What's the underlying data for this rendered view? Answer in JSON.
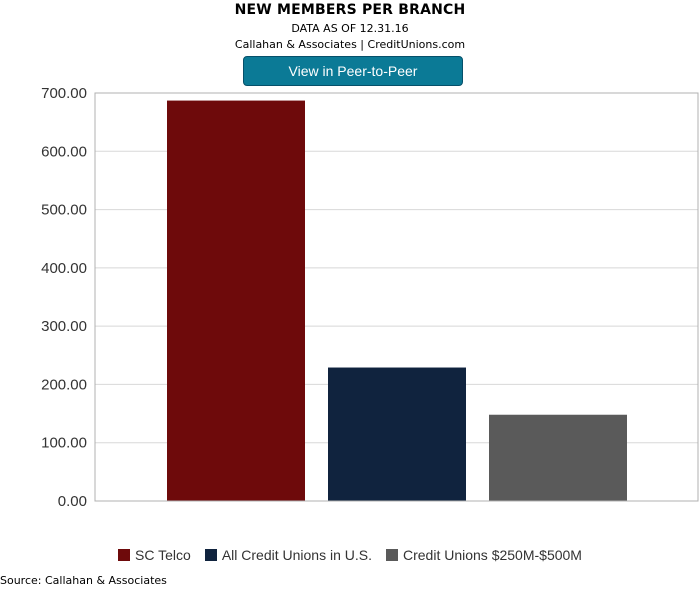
{
  "header": {
    "title": "NEW MEMBERS PER BRANCH",
    "subtitle1": "DATA AS OF 12.31.16",
    "subtitle2": "Callahan & Associates | CreditUnions.com",
    "button_label": "View in Peer-to-Peer"
  },
  "footer": {
    "source": "Source: Callahan & Associates"
  },
  "chart_data": {
    "type": "bar",
    "title": "NEW MEMBERS PER BRANCH",
    "xlabel": "",
    "ylabel": "",
    "ylim": [
      0,
      700
    ],
    "yticks": [
      0,
      100,
      200,
      300,
      400,
      500,
      600,
      700
    ],
    "ytick_labels": [
      "0.00",
      "100.00",
      "200.00",
      "300.00",
      "400.00",
      "500.00",
      "600.00",
      "700.00"
    ],
    "grid": true,
    "legend_position": "bottom",
    "series": [
      {
        "name": "SC Telco",
        "value": 687,
        "color": "#6e0a0b"
      },
      {
        "name": "All Credit Unions in U.S.",
        "value": 229,
        "color": "#10233e"
      },
      {
        "name": "Credit Unions $250M-$500M",
        "value": 148,
        "color": "#5a5a5a"
      }
    ]
  }
}
